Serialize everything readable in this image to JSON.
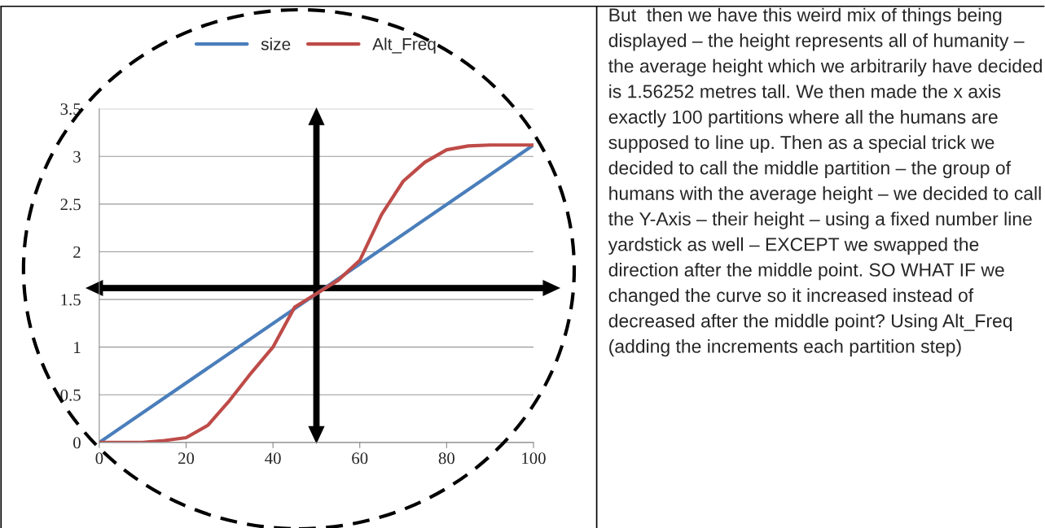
{
  "chart_data": {
    "type": "line",
    "x": [
      0,
      10,
      15,
      20,
      25,
      30,
      35,
      40,
      45,
      50,
      55,
      60,
      65,
      70,
      75,
      80,
      85,
      90,
      100
    ],
    "series": [
      {
        "name": "size",
        "color": "#4a7ebb",
        "x": [
          0,
          100
        ],
        "values": [
          0,
          3.12
        ]
      },
      {
        "name": "Alt_Freq",
        "color": "#be4b48",
        "values": [
          0,
          0,
          0.02,
          0.05,
          0.18,
          0.44,
          0.73,
          1.0,
          1.42,
          1.56,
          1.7,
          1.91,
          2.39,
          2.74,
          2.94,
          3.07,
          3.11,
          3.12,
          3.12
        ]
      }
    ],
    "xlim": [
      0,
      100
    ],
    "xticks": [
      0,
      20,
      40,
      60,
      80,
      100
    ],
    "ylim": [
      0,
      3.5
    ],
    "yticks": [
      0,
      0.5,
      1,
      1.5,
      2,
      2.5,
      3,
      3.5
    ],
    "grid": "y",
    "legend": "top",
    "marker": "none",
    "line_style": "solid",
    "annotations": [
      "But  then we have this weird mix of things being displayed – the height represents all of humanity – the average height which we arbitrarily have decided is 1.56252 metres tall. We then made the x axis exactly 100 partitions where all the humans are supposed to line up. Then as a special trick we decided to call the middle partition – the group of humans with the average height – we decided to call the Y-Axis – their height – using a fixed number line yardstick as well – EXCEPT we swapped the direction after the middle point. SO WHAT IF we changed the curve so it increased instead of decreased after the middle point? Using Alt_Freq (adding the increments each partition step)"
    ]
  }
}
